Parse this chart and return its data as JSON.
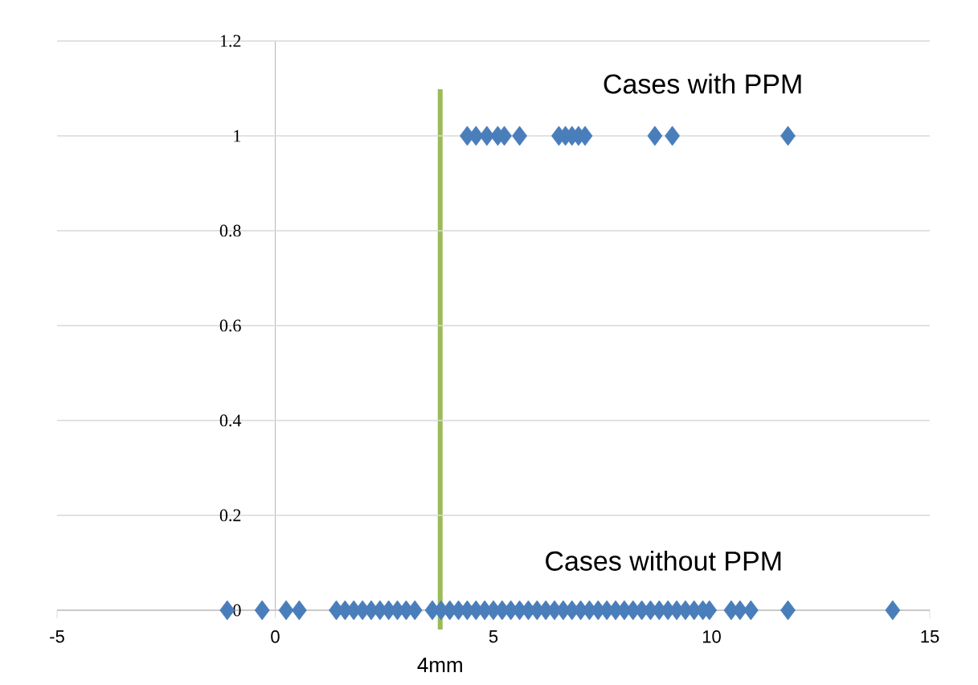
{
  "chart_data": {
    "type": "scatter",
    "x": [
      4.4,
      4.6,
      4.85,
      5.1,
      5.25,
      5.6,
      6.5,
      6.65,
      6.8,
      6.95,
      7.1,
      8.7,
      9.1,
      11.75,
      -1.1,
      -0.3,
      0.25,
      0.55,
      1.4,
      1.6,
      1.8,
      2.0,
      2.2,
      2.4,
      2.6,
      2.8,
      3.0,
      3.2,
      3.6,
      3.8,
      4.0,
      4.2,
      4.4,
      4.6,
      4.8,
      5.0,
      5.2,
      5.4,
      5.6,
      5.8,
      6.0,
      6.2,
      6.4,
      6.6,
      6.8,
      7.0,
      7.2,
      7.4,
      7.6,
      7.8,
      8.0,
      8.2,
      8.4,
      8.6,
      8.8,
      9.0,
      9.2,
      9.4,
      9.6,
      9.8,
      9.95,
      10.45,
      10.65,
      10.9,
      11.75,
      14.15
    ],
    "values": [
      1,
      1,
      1,
      1,
      1,
      1,
      1,
      1,
      1,
      1,
      1,
      1,
      1,
      1,
      0,
      0,
      0,
      0,
      0,
      0,
      0,
      0,
      0,
      0,
      0,
      0,
      0,
      0,
      0,
      0,
      0,
      0,
      0,
      0,
      0,
      0,
      0,
      0,
      0,
      0,
      0,
      0,
      0,
      0,
      0,
      0,
      0,
      0,
      0,
      0,
      0,
      0,
      0,
      0,
      0,
      0,
      0,
      0,
      0,
      0,
      0,
      0,
      0,
      0,
      0,
      0
    ],
    "color": "#4a7ebb",
    "marker": "diamond",
    "xlim": [
      -5,
      15
    ],
    "xticks": [
      -5,
      0,
      5,
      10,
      15
    ],
    "ylim": [
      0,
      1.2
    ],
    "yticks": [
      {
        "value": 0,
        "label": "0"
      },
      0.2,
      0.4,
      0.6,
      0.8,
      1,
      1.2
    ],
    "grid": "y",
    "ref_lines": [
      {
        "axis": "x",
        "value": 3.78,
        "label": "4mm",
        "color": "#9bbb59"
      }
    ],
    "annotations": [
      "Cases with PPM",
      "Cases without PPM"
    ]
  }
}
